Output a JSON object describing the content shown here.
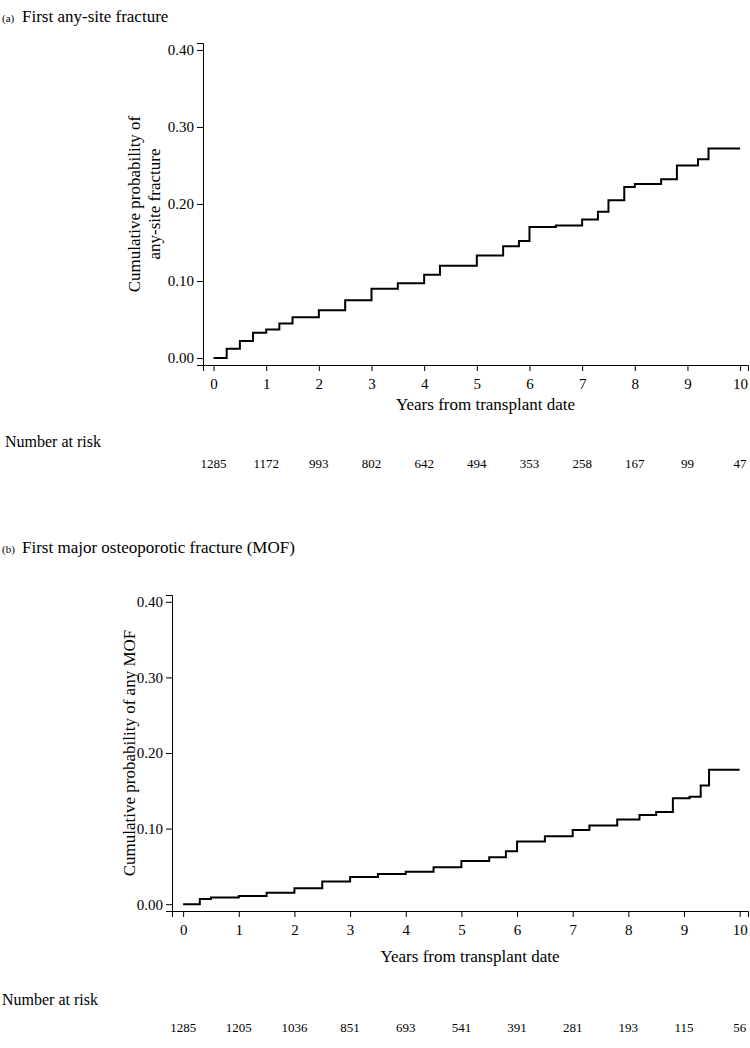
{
  "chart_data": [
    {
      "type": "line",
      "panel": "(a)",
      "title": "First any-site fracture",
      "xlabel": "Years from transplant date",
      "ylabel": [
        "Cumulative probability of",
        "any-site fracture"
      ],
      "color": "#000000",
      "line_style": "step",
      "x": [
        0,
        0.25,
        0.5,
        0.75,
        1,
        1.25,
        1.5,
        2,
        2.5,
        3,
        3.5,
        4,
        4.3,
        5,
        5.5,
        5.8,
        6,
        6.5,
        7,
        7.3,
        7.5,
        7.8,
        8,
        8.5,
        8.8,
        9.2,
        9.4,
        10
      ],
      "values": [
        0,
        0.012,
        0.022,
        0.033,
        0.037,
        0.045,
        0.053,
        0.062,
        0.075,
        0.09,
        0.097,
        0.108,
        0.12,
        0.133,
        0.145,
        0.152,
        0.17,
        0.172,
        0.18,
        0.19,
        0.205,
        0.222,
        0.226,
        0.232,
        0.25,
        0.258,
        0.272,
        0.272
      ],
      "xlim": [
        -0.2,
        10.15
      ],
      "ylim": [
        -0.009,
        0.409
      ],
      "xticks": [
        0,
        1,
        2,
        3,
        4,
        5,
        6,
        7,
        8,
        9,
        10
      ],
      "yticks": [
        {
          "value": 0,
          "label": "0.00"
        },
        {
          "value": 0.1,
          "label": "0.10"
        },
        {
          "value": 0.2,
          "label": "0.20"
        },
        {
          "value": 0.3,
          "label": "0.30"
        },
        {
          "value": 0.4,
          "label": "0.40"
        }
      ],
      "risk_table": {
        "title": "Number at risk",
        "x": [
          0,
          1,
          2,
          3,
          4,
          5,
          6,
          7,
          8,
          9,
          10
        ],
        "values": [
          1285,
          1172,
          993,
          802,
          642,
          494,
          353,
          258,
          167,
          99,
          47
        ]
      }
    },
    {
      "type": "line",
      "panel": "(b)",
      "title": "First major osteoporotic fracture (MOF)",
      "xlabel": "Years from transplant date",
      "ylabel": [
        "Cumulative probability of any MOF"
      ],
      "color": "#000000",
      "line_style": "step",
      "x": [
        0,
        0.3,
        0.5,
        1,
        1.5,
        2,
        2.5,
        3,
        3.5,
        4,
        4.5,
        5,
        5.5,
        5.8,
        6,
        6.5,
        7,
        7.3,
        7.8,
        8.2,
        8.5,
        8.8,
        9.1,
        9.3,
        9.45,
        10
      ],
      "values": [
        0,
        0.007,
        0.009,
        0.011,
        0.015,
        0.021,
        0.03,
        0.036,
        0.04,
        0.043,
        0.049,
        0.057,
        0.062,
        0.07,
        0.083,
        0.09,
        0.098,
        0.104,
        0.112,
        0.118,
        0.122,
        0.14,
        0.142,
        0.157,
        0.178,
        0.178
      ],
      "xlim": [
        -0.2,
        10.15
      ],
      "ylim": [
        -0.009,
        0.409
      ],
      "xticks": [
        0,
        1,
        2,
        3,
        4,
        5,
        6,
        7,
        8,
        9,
        10
      ],
      "yticks": [
        {
          "value": 0,
          "label": "0.00"
        },
        {
          "value": 0.1,
          "label": "0.10"
        },
        {
          "value": 0.2,
          "label": "0.20"
        },
        {
          "value": 0.3,
          "label": "0.30"
        },
        {
          "value": 0.4,
          "label": "0.40"
        }
      ],
      "risk_table": {
        "title": "Number at risk",
        "x": [
          0,
          1,
          2,
          3,
          4,
          5,
          6,
          7,
          8,
          9,
          10
        ],
        "values": [
          1285,
          1205,
          1036,
          851,
          693,
          541,
          391,
          281,
          193,
          115,
          56
        ]
      }
    }
  ]
}
